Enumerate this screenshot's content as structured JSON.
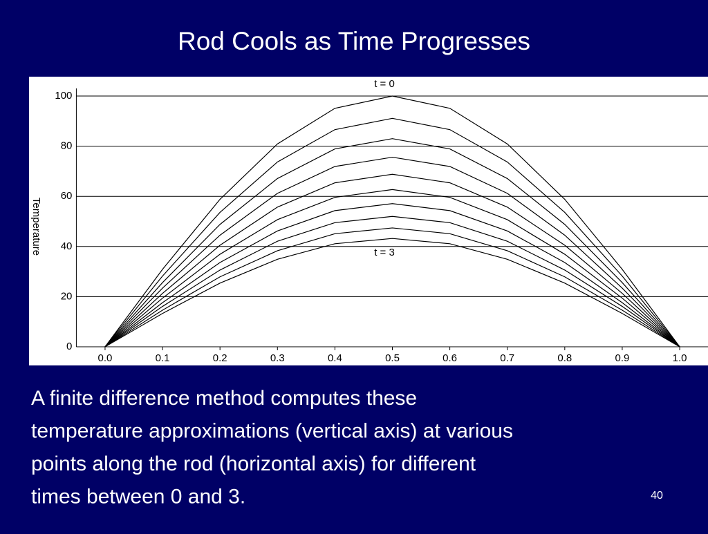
{
  "chart_data": {
    "type": "line",
    "title": "Rod Cools as Time Progresses",
    "y_label": "Temperature",
    "annotations": [
      "t = 0",
      "t = 3"
    ],
    "x": [
      0,
      0.1,
      0.2,
      0.3,
      0.4,
      0.5,
      0.6,
      0.7,
      0.8,
      0.9,
      1
    ],
    "series": [
      {
        "color": "#000000",
        "values": [
          0,
          30.9,
          58.8,
          80.9,
          95.1,
          100,
          95.1,
          80.9,
          58.8,
          30.9,
          0
        ]
      },
      {
        "color": "#000000",
        "values": [
          0,
          28.2,
          53.6,
          73.7,
          86.6,
          91.1,
          86.6,
          73.7,
          53.6,
          28.2,
          0
        ]
      },
      {
        "color": "#000000",
        "values": [
          0,
          25.6,
          48.8,
          67.1,
          78.9,
          83,
          78.9,
          67.1,
          48.8,
          25.6,
          0
        ]
      },
      {
        "color": "#000000",
        "values": [
          0,
          23.4,
          44.5,
          61.2,
          71.9,
          75.6,
          71.9,
          61.2,
          44.5,
          23.4,
          0
        ]
      },
      {
        "color": "#000000",
        "values": [
          0,
          21.3,
          40.5,
          55.7,
          65.4,
          68.8,
          65.4,
          55.7,
          40.5,
          21.3,
          0
        ]
      },
      {
        "color": "#000000",
        "values": [
          0,
          19.4,
          36.9,
          50.7,
          59.6,
          62.7,
          59.6,
          50.7,
          36.9,
          19.4,
          0
        ]
      },
      {
        "color": "#000000",
        "values": [
          0,
          17.6,
          33.6,
          46.2,
          54.3,
          57.1,
          54.3,
          46.2,
          33.6,
          17.6,
          0
        ]
      },
      {
        "color": "#000000",
        "values": [
          0,
          16.1,
          30.6,
          42.1,
          49.5,
          52,
          49.5,
          42.1,
          30.6,
          16.1,
          0
        ]
      },
      {
        "color": "#000000",
        "values": [
          0,
          14.6,
          27.9,
          38.3,
          45.1,
          47.4,
          45.1,
          38.3,
          27.9,
          14.6,
          0
        ]
      },
      {
        "color": "#000000",
        "values": [
          0,
          13.3,
          25.4,
          34.9,
          41.1,
          43.2,
          41.1,
          34.9,
          25.4,
          13.3,
          0
        ]
      }
    ],
    "xlim": [
      -0.05,
      1.05
    ],
    "xticks": [
      {
        "value": 0,
        "label": "0.0"
      },
      0.1,
      0.2,
      0.3,
      0.4,
      0.5,
      0.6,
      0.7,
      0.8,
      0.9,
      {
        "value": 1,
        "label": "1.0"
      }
    ],
    "ylim": [
      0,
      100
    ],
    "yticks": [
      0,
      20,
      40,
      60,
      80,
      100
    ],
    "grid": true,
    "grid_color": "#000000"
  },
  "body_lines": [
    "A finite difference method computes these",
    "temperature approximations (vertical axis) at various",
    "points along the rod (horizontal axis) for different",
    "times between 0 and 3."
  ],
  "page_number": "40"
}
